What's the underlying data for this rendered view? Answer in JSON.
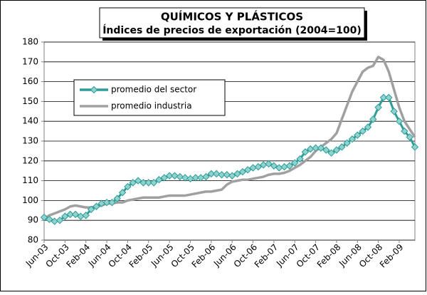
{
  "chart_data": {
    "type": "line",
    "title": "QUÍMICOS Y PLÁSTICOS",
    "subtitle": "Índices de precios de exportación (2004=100)",
    "categories": [
      "Jun-03",
      null,
      null,
      null,
      "Oct-03",
      null,
      null,
      null,
      "Feb-04",
      null,
      null,
      null,
      "Jun-04",
      null,
      null,
      null,
      "Oct-04",
      null,
      null,
      null,
      "Feb-05",
      null,
      null,
      null,
      "Jun-05",
      null,
      null,
      null,
      "Oct-05",
      null,
      null,
      null,
      "Feb-06",
      null,
      null,
      null,
      "Jun-06",
      null,
      null,
      null,
      "Oct-06",
      null,
      null,
      null,
      "Feb-07",
      null,
      null,
      null,
      "Jun-07",
      null,
      null,
      null,
      "Oct-07",
      null,
      null,
      null,
      "Feb-08",
      null,
      null,
      null,
      "Jun-08",
      null,
      null,
      null,
      "Oct-08",
      null,
      null,
      null,
      "Feb-09",
      null,
      null,
      null
    ],
    "series": [
      {
        "name": "promedio del sector",
        "color": "#2e9c98",
        "marker": "diamond",
        "values": [
          91.5,
          90.5,
          89.5,
          90,
          92,
          93,
          93,
          92,
          92.5,
          95.5,
          97,
          98.5,
          99,
          99,
          101,
          104,
          107,
          109,
          110,
          109,
          109,
          109,
          110.5,
          111.5,
          112.5,
          112.5,
          112,
          111.5,
          111,
          111.5,
          111.5,
          112,
          113.5,
          113.5,
          113,
          113,
          112.5,
          113.5,
          114.5,
          115.5,
          116.5,
          117,
          118,
          118.5,
          117.5,
          116.5,
          117,
          117.5,
          119,
          121,
          124.5,
          126,
          126.5,
          126.5,
          125.5,
          124,
          125.5,
          127,
          129,
          131,
          133,
          135,
          137,
          141,
          147,
          152,
          152,
          145,
          140,
          135,
          132,
          127
        ]
      },
      {
        "name": "promedio industria",
        "color": "#a0a0a0",
        "values": [
          91,
          92.5,
          93.5,
          94.5,
          95.5,
          97,
          97.5,
          97,
          96.5,
          96.5,
          97,
          97.5,
          98.5,
          98.5,
          99,
          99,
          100,
          100.5,
          101,
          101.5,
          101.5,
          101.5,
          101.5,
          102,
          102.5,
          102.5,
          102.5,
          102.5,
          103,
          103.5,
          104,
          104.5,
          104.5,
          105,
          105.5,
          108,
          109.5,
          110,
          110.5,
          110.5,
          111,
          111.5,
          112,
          113,
          113.5,
          113.5,
          114,
          115,
          116.5,
          118,
          120,
          122,
          125,
          127,
          129,
          131,
          134,
          141,
          148,
          155,
          160,
          165,
          167,
          168,
          172.5,
          171,
          165,
          156,
          147,
          140,
          136,
          132
        ]
      }
    ],
    "ylim": [
      80,
      180
    ],
    "yticks": [
      80,
      90,
      100,
      110,
      120,
      130,
      140,
      150,
      160,
      170,
      180
    ],
    "grid": true,
    "legend": "upper left"
  }
}
